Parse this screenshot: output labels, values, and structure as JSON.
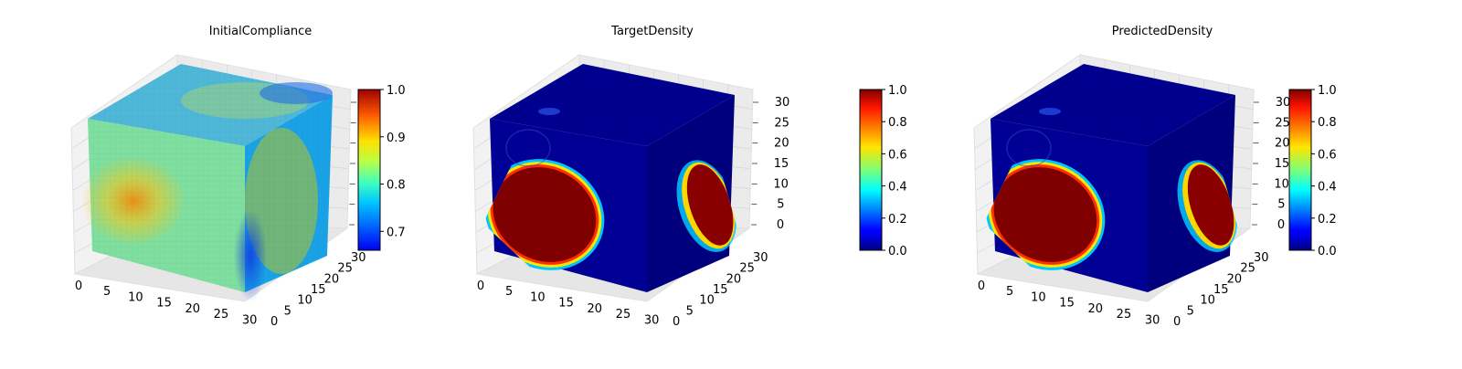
{
  "figure": {
    "background": "#ffffff"
  },
  "chart_data": [
    {
      "type": "heatmap",
      "subtype": "3d-voxel-cube",
      "title": "InitialCompliance",
      "colormap": "jet",
      "x_ticks": [
        "0",
        "5",
        "10",
        "15",
        "20",
        "25",
        "30"
      ],
      "y_ticks": [
        "0",
        "5",
        "10",
        "15",
        "20",
        "25",
        "30"
      ],
      "z_ticks": [],
      "grid": true,
      "colorbar": {
        "min": 0.66,
        "max": 1.0,
        "ticks": [
          "0.7",
          "0.8",
          "0.9",
          "1.0"
        ],
        "tick_values": [
          0.7,
          0.8,
          0.9,
          1.0
        ]
      }
    },
    {
      "type": "heatmap",
      "subtype": "3d-voxel-cube",
      "title": "TargetDensity",
      "colormap": "jet",
      "x_ticks": [
        "0",
        "5",
        "10",
        "15",
        "20",
        "25",
        "30"
      ],
      "y_ticks": [
        "0",
        "5",
        "10",
        "15",
        "20",
        "25",
        "30"
      ],
      "z_ticks": [
        "0",
        "5",
        "10",
        "15",
        "20",
        "25",
        "30"
      ],
      "grid": true,
      "colorbar": {
        "min": 0.0,
        "max": 1.0,
        "ticks": [
          "0.0",
          "0.2",
          "0.4",
          "0.6",
          "0.8",
          "1.0"
        ],
        "tick_values": [
          0.0,
          0.2,
          0.4,
          0.6,
          0.8,
          1.0
        ]
      }
    },
    {
      "type": "heatmap",
      "subtype": "3d-voxel-cube",
      "title": "PredictedDensity",
      "colormap": "jet",
      "x_ticks": [
        "0",
        "5",
        "10",
        "15",
        "20",
        "25",
        "30"
      ],
      "y_ticks": [
        "0",
        "5",
        "10",
        "15",
        "20",
        "25",
        "30"
      ],
      "z_ticks": [
        "0",
        "5",
        "10",
        "15",
        "20",
        "25",
        "30"
      ],
      "grid": true,
      "colorbar": {
        "min": 0.0,
        "max": 1.0,
        "ticks": [
          "0.0",
          "0.2",
          "0.4",
          "0.6",
          "0.8",
          "1.0"
        ],
        "tick_values": [
          0.0,
          0.2,
          0.4,
          0.6,
          0.8,
          1.0
        ]
      }
    }
  ]
}
